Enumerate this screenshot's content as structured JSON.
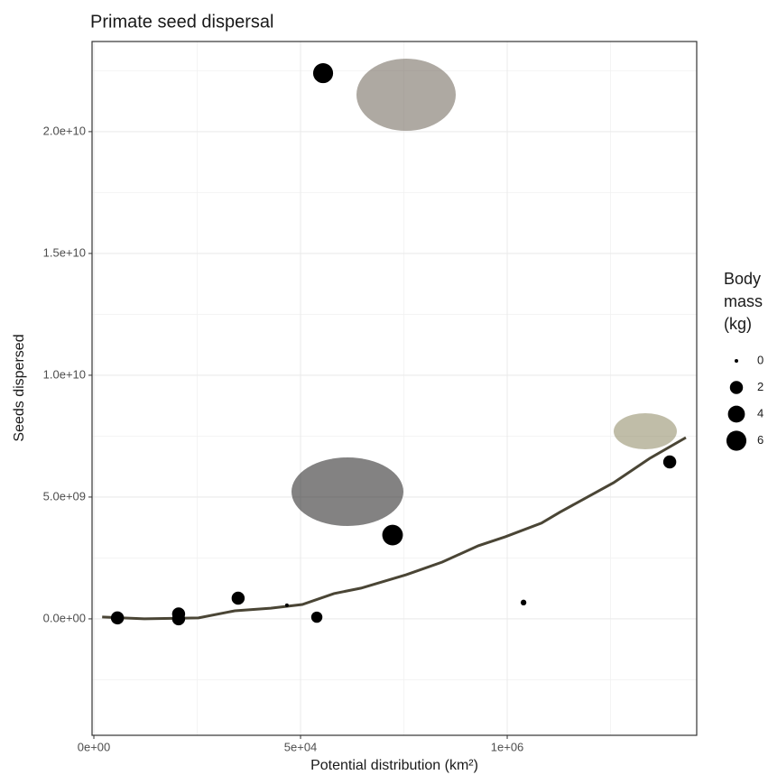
{
  "chart_data": {
    "type": "scatter",
    "title": "Primate seed dispersal",
    "x_label": "Potential distribution (km²)",
    "y_label": "Seeds dispersed",
    "xlim": [
      -440,
      1871000
    ],
    "ylim": [
      -4780000000,
      23700000000
    ],
    "xticks": [
      {
        "value": 0,
        "label": "0e+00"
      },
      {
        "value": 50000,
        "label": "5e+04"
      },
      {
        "value": 1000000,
        "label": "1e+06"
      }
    ],
    "yticks": [
      {
        "value": 0,
        "label": "0.0e+00"
      },
      {
        "value": 5000000000,
        "label": "5.0e+09"
      },
      {
        "value": 10000000000,
        "label": "1.0e+10"
      },
      {
        "value": 15000000000,
        "label": "1.5e+10"
      },
      {
        "value": 20000000000,
        "label": "2.0e+10"
      }
    ],
    "grid": true,
    "points": {
      "color": "#000000",
      "x": [
        5700,
        20500,
        20500,
        34900,
        46700,
        124700,
        153700,
        473000,
        1075000,
        1747000
      ],
      "y": [
        40000000,
        200000000,
        0,
        850000000,
        560000000,
        70000000,
        22400000000,
        3440000000,
        670000000,
        6440000000
      ],
      "size": [
        2,
        2,
        2,
        2,
        0,
        1.3,
        6,
        6.5,
        0.1,
        2
      ]
    },
    "smooth": {
      "color": "#4a4535",
      "x": [
        2000,
        12200,
        25300,
        34100,
        42800,
        58300,
        203500,
        327900,
        535300,
        701300,
        867200,
        991700,
        1157600,
        1240600,
        1489500,
        1655400,
        1821300
      ],
      "y": [
        74000000,
        0,
        37000000,
        330000000,
        440000000,
        590000000,
        1040000000,
        1260000000,
        1810000000,
        2330000000,
        3000000000,
        3370000000,
        3930000000,
        4370000000,
        5590000000,
        6590000000,
        7440000000
      ]
    },
    "size_legend": {
      "title": "Body mass (kg)",
      "values": [
        0,
        2,
        4,
        6
      ]
    }
  }
}
